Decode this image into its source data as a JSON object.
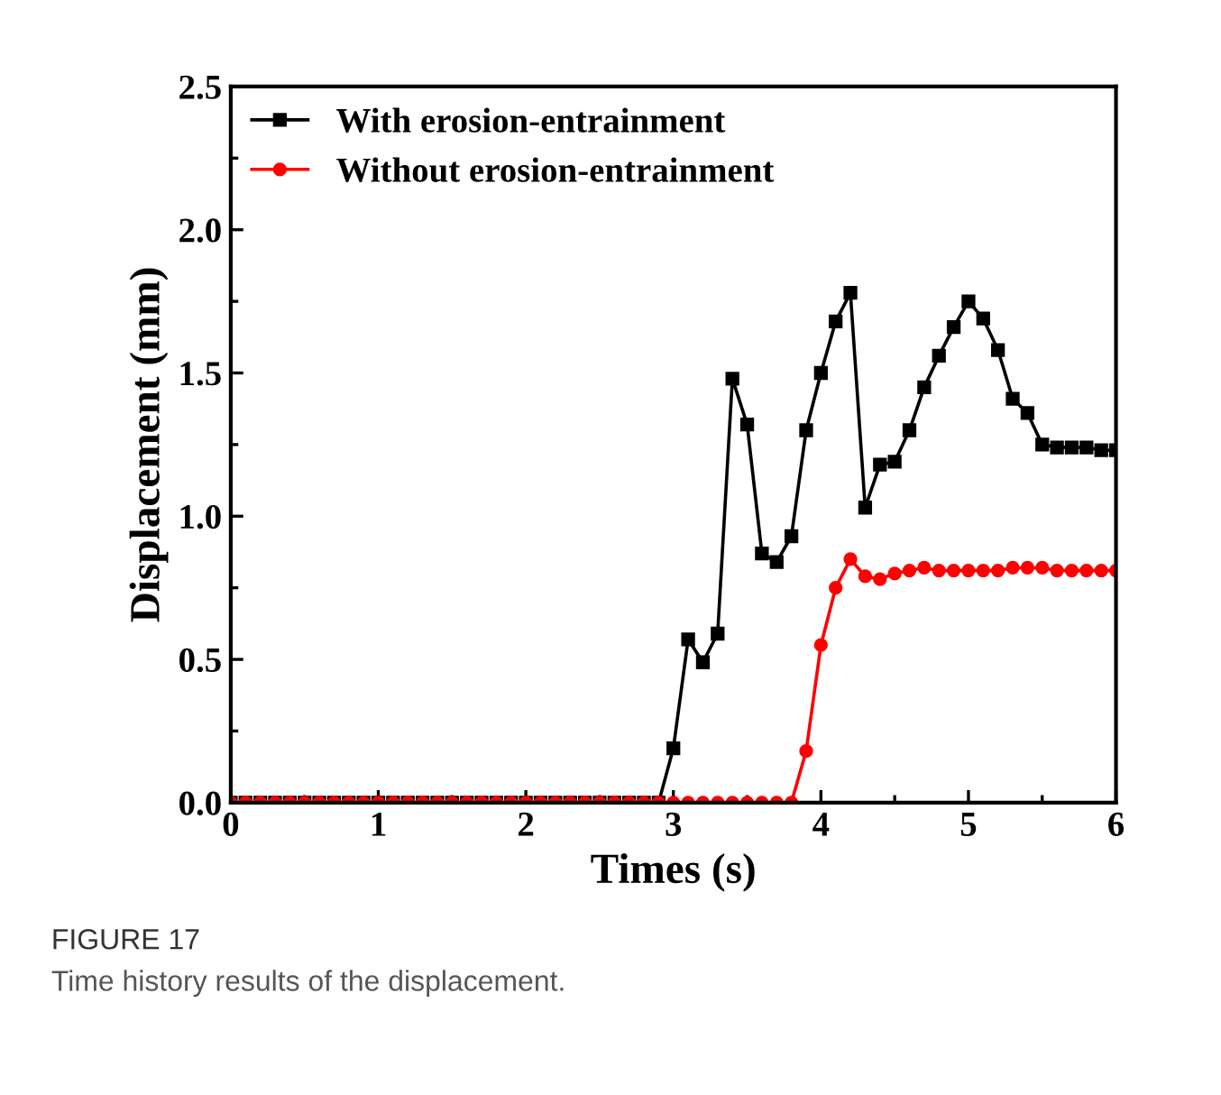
{
  "chart_data": {
    "type": "line",
    "xlabel": "Times (s)",
    "ylabel": "Displacement (mm)",
    "x": [
      0.0,
      0.1,
      0.2,
      0.3,
      0.4,
      0.5,
      0.6,
      0.7,
      0.8,
      0.9,
      1.0,
      1.1,
      1.2,
      1.3,
      1.4,
      1.5,
      1.6,
      1.7,
      1.8,
      1.9,
      2.0,
      2.1,
      2.2,
      2.3,
      2.4,
      2.5,
      2.6,
      2.7,
      2.8,
      2.9,
      3.0,
      3.1,
      3.2,
      3.3,
      3.4,
      3.5,
      3.6,
      3.7,
      3.8,
      3.9,
      4.0,
      4.1,
      4.2,
      4.3,
      4.4,
      4.5,
      4.6,
      4.7,
      4.8,
      4.9,
      5.0,
      5.1,
      5.2,
      5.3,
      5.4,
      5.5,
      5.6,
      5.7,
      5.8,
      5.9,
      6.0
    ],
    "series": [
      {
        "name": "With erosion-entrainment",
        "color": "#000000",
        "marker": "square",
        "values": [
          0,
          0,
          0,
          0,
          0,
          0,
          0,
          0,
          0,
          0,
          0,
          0,
          0,
          0,
          0,
          0,
          0,
          0,
          0,
          0,
          0,
          0,
          0,
          0,
          0,
          0,
          0,
          0,
          0,
          0,
          0.19,
          0.57,
          0.49,
          0.59,
          1.48,
          1.32,
          0.87,
          0.84,
          0.93,
          1.3,
          1.5,
          1.68,
          1.78,
          1.03,
          1.18,
          1.19,
          1.3,
          1.45,
          1.56,
          1.66,
          1.75,
          1.69,
          1.58,
          1.41,
          1.36,
          1.25,
          1.24,
          1.24,
          1.24,
          1.23,
          1.23
        ]
      },
      {
        "name": "Without erosion-entrainment",
        "color": "#ff0000",
        "marker": "circle",
        "values": [
          0,
          0,
          0,
          0,
          0,
          0,
          0,
          0,
          0,
          0,
          0,
          0,
          0,
          0,
          0,
          0,
          0,
          0,
          0,
          0,
          0,
          0,
          0,
          0,
          0,
          0,
          0,
          0,
          0,
          0,
          0,
          0,
          0,
          0,
          0,
          0,
          0,
          0,
          0,
          0.18,
          0.55,
          0.75,
          0.85,
          0.79,
          0.78,
          0.8,
          0.81,
          0.82,
          0.81,
          0.81,
          0.81,
          0.81,
          0.81,
          0.82,
          0.82,
          0.82,
          0.81,
          0.81,
          0.81,
          0.81,
          0.81
        ]
      }
    ],
    "xlim": [
      0,
      6
    ],
    "xticks": [
      0,
      1,
      2,
      3,
      4,
      5,
      6
    ],
    "ylim": [
      0,
      2.5
    ],
    "yticks": [
      {
        "value": 0,
        "label": "0.0"
      },
      {
        "value": 0.5,
        "label": "0.5"
      },
      {
        "value": 1,
        "label": "1.0"
      },
      {
        "value": 1.5,
        "label": "1.5"
      },
      {
        "value": 2,
        "label": "2.0"
      },
      {
        "value": 2.5,
        "label": "2.5"
      }
    ],
    "legend": "top left",
    "grid": false,
    "line_style": "solid",
    "annotations": [
      "FIGURE 17",
      "Time history results of the displacement."
    ]
  }
}
